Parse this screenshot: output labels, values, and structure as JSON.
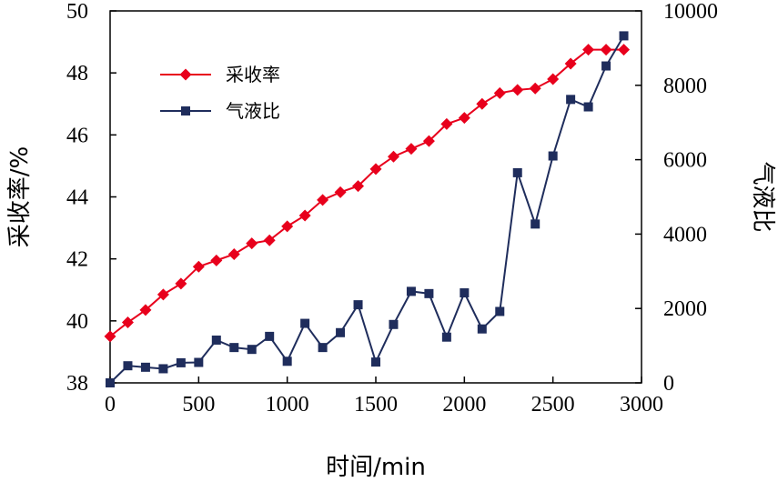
{
  "chart_data": {
    "type": "line",
    "x": [
      0,
      100,
      200,
      300,
      400,
      500,
      600,
      700,
      800,
      900,
      1000,
      1100,
      1200,
      1300,
      1400,
      1500,
      1600,
      1700,
      1800,
      1900,
      2000,
      2100,
      2200,
      2300,
      2400,
      2500,
      2600,
      2700,
      2800,
      2900
    ],
    "series": [
      {
        "name": "采收率",
        "axis": "left",
        "color": "#e8001c",
        "marker": "diamond",
        "values": [
          39.5,
          39.95,
          40.35,
          40.85,
          41.2,
          41.75,
          41.95,
          42.15,
          42.5,
          42.6,
          43.05,
          43.4,
          43.9,
          44.15,
          44.35,
          44.9,
          45.3,
          45.55,
          45.8,
          46.35,
          46.55,
          47.0,
          47.35,
          47.45,
          47.5,
          47.8,
          48.3,
          48.75,
          48.75,
          48.75
        ]
      },
      {
        "name": "气液比",
        "axis": "right",
        "color": "#1f2d5c",
        "marker": "square",
        "values": [
          0,
          460,
          420,
          380,
          540,
          550,
          1150,
          950,
          900,
          1250,
          580,
          1600,
          950,
          1350,
          2100,
          560,
          1570,
          2460,
          2400,
          1230,
          2420,
          1450,
          1920,
          5650,
          4270,
          6100,
          7620,
          7420,
          8520,
          9330
        ]
      }
    ],
    "xlabel": "时间/min",
    "ylabel": "采收率/%",
    "y2label": "气液比",
    "xlim": [
      0,
      3000
    ],
    "ylim": [
      38,
      50
    ],
    "y2lim": [
      0,
      10000
    ],
    "xticks": [
      "0",
      "500",
      "1000",
      "1500",
      "2000",
      "2500",
      "3000"
    ],
    "yticks": [
      "38",
      "40",
      "42",
      "44",
      "46",
      "48",
      "50"
    ],
    "y2ticks": [
      "0",
      "2000",
      "4000",
      "6000",
      "8000",
      "10000"
    ],
    "legend_position": "top-left",
    "grid": false
  }
}
